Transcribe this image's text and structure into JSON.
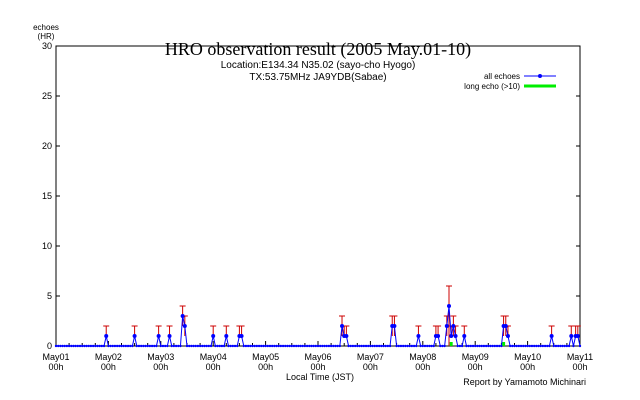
{
  "chart_data": {
    "type": "line",
    "title": "HRO observation result (2005 May.01-10)",
    "subtitle_lines": [
      "Location:E134.34 N35.02 (sayo-cho Hyogo)",
      "TX:53.75MHz JA9YDB(Sabae)"
    ],
    "ylabel_lines": [
      "echoes",
      "(HR)"
    ],
    "xlabel": "Local Time (JST)",
    "credit": "Report by Yamamoto Michinari",
    "ylim": [
      0,
      30
    ],
    "xlim_days": [
      0,
      10
    ],
    "y_ticks": [
      "0",
      "5",
      "10",
      "15",
      "20",
      "25",
      "30"
    ],
    "x_ticks": [
      {
        "day": "May01",
        "hour": "00h"
      },
      {
        "day": "May02",
        "hour": "00h"
      },
      {
        "day": "May03",
        "hour": "00h"
      },
      {
        "day": "May04",
        "hour": "00h"
      },
      {
        "day": "May05",
        "hour": "00h"
      },
      {
        "day": "May06",
        "hour": "00h"
      },
      {
        "day": "May07",
        "hour": "00h"
      },
      {
        "day": "May08",
        "hour": "00h"
      },
      {
        "day": "May09",
        "hour": "00h"
      },
      {
        "day": "May10",
        "hour": "00h"
      },
      {
        "day": "May11",
        "hour": "00h"
      }
    ],
    "legend_position": "top-right",
    "series": [
      {
        "name": "all echoes",
        "color": "#0000ff",
        "error_color": "#cc0000",
        "hour_step": 1,
        "error_rule": "+1 HR when 1 echo, otherwise ±1 HR (0 to 6 for 4 echoes)",
        "nonzero_hours": [
          {
            "hour": 23,
            "value": 1
          },
          {
            "hour": 36,
            "value": 1
          },
          {
            "hour": 47,
            "value": 1
          },
          {
            "hour": 52,
            "value": 1
          },
          {
            "hour": 58,
            "value": 3
          },
          {
            "hour": 59,
            "value": 2
          },
          {
            "hour": 72,
            "value": 1
          },
          {
            "hour": 78,
            "value": 1
          },
          {
            "hour": 84,
            "value": 1
          },
          {
            "hour": 85,
            "value": 1
          },
          {
            "hour": 131,
            "value": 2
          },
          {
            "hour": 132,
            "value": 1
          },
          {
            "hour": 133,
            "value": 1
          },
          {
            "hour": 154,
            "value": 2
          },
          {
            "hour": 155,
            "value": 2
          },
          {
            "hour": 166,
            "value": 1
          },
          {
            "hour": 174,
            "value": 1
          },
          {
            "hour": 175,
            "value": 1
          },
          {
            "hour": 179,
            "value": 2
          },
          {
            "hour": 180,
            "value": 4
          },
          {
            "hour": 181,
            "value": 1
          },
          {
            "hour": 182,
            "value": 2
          },
          {
            "hour": 183,
            "value": 1
          },
          {
            "hour": 187,
            "value": 1
          },
          {
            "hour": 205,
            "value": 2
          },
          {
            "hour": 206,
            "value": 2
          },
          {
            "hour": 207,
            "value": 1
          },
          {
            "hour": 227,
            "value": 1
          },
          {
            "hour": 236,
            "value": 1
          },
          {
            "hour": 238,
            "value": 1
          },
          {
            "hour": 239,
            "value": 1
          }
        ]
      },
      {
        "name": "long echo (>10)",
        "color": "#00ee00",
        "nonzero_hours": [
          {
            "hour": 181,
            "value": 1
          },
          {
            "hour": 205,
            "value": 1
          }
        ]
      }
    ]
  }
}
